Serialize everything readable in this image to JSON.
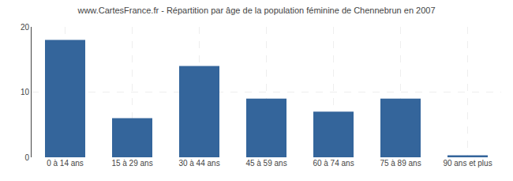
{
  "chart_data": {
    "type": "bar",
    "title": "www.CartesFrance.fr - Répartition par âge de la population féminine de Chennebrun en 2007",
    "categories": [
      "0 à 14 ans",
      "15 à 29 ans",
      "30 à 44 ans",
      "45 à 59 ans",
      "60 à 74 ans",
      "75 à 89 ans",
      "90 ans et plus"
    ],
    "values": [
      18,
      6,
      14,
      9,
      7,
      9,
      0.3
    ],
    "color": "#34659b",
    "ylim": [
      0,
      20
    ],
    "yticks": [
      0,
      10,
      20
    ],
    "grid": true
  }
}
